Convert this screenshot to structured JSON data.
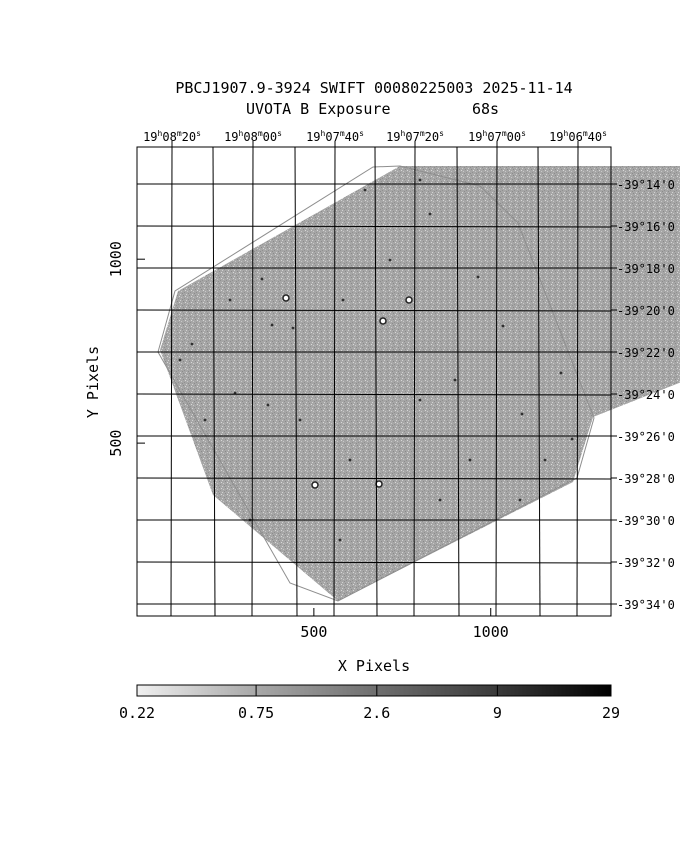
{
  "chart_data": {
    "type": "heatmap",
    "title_line1": "PBCJ1907.9-3924 SWIFT 00080225003 2025-11-14",
    "title_line2_label": "UVOTA B Exposure",
    "title_line2_value": "68s",
    "xlabel": "X Pixels",
    "ylabel": "Y Pixels",
    "x_ticks": [
      500,
      1000
    ],
    "y_ticks": [
      500,
      1000
    ],
    "x_range": [
      0,
      1340
    ],
    "y_range": [
      30,
      1305
    ],
    "ra_ticks": [
      {
        "h": "19",
        "m": "08",
        "s": "20"
      },
      {
        "h": "19",
        "m": "08",
        "s": "00"
      },
      {
        "h": "19",
        "m": "07",
        "s": "40"
      },
      {
        "h": "19",
        "m": "07",
        "s": "20"
      },
      {
        "h": "19",
        "m": "07",
        "s": "00"
      },
      {
        "h": "19",
        "m": "06",
        "s": "40"
      }
    ],
    "dec_ticks": [
      "-39°14'0",
      "-39°16'0",
      "-39°18'0",
      "-39°20'0",
      "-39°22'0",
      "-39°24'0",
      "-39°26'0",
      "-39°28'0",
      "-39°30'0",
      "-39°32'0",
      "-39°34'0"
    ],
    "colorbar_labels": [
      "0.22",
      "0.75",
      "2.6",
      "9",
      "29"
    ],
    "colorbar_scale": "log",
    "colorbar_range": [
      0.22,
      29
    ],
    "colors": {
      "background": "#ffffff",
      "image": "#a0a0a0",
      "grid": "#000000"
    }
  }
}
